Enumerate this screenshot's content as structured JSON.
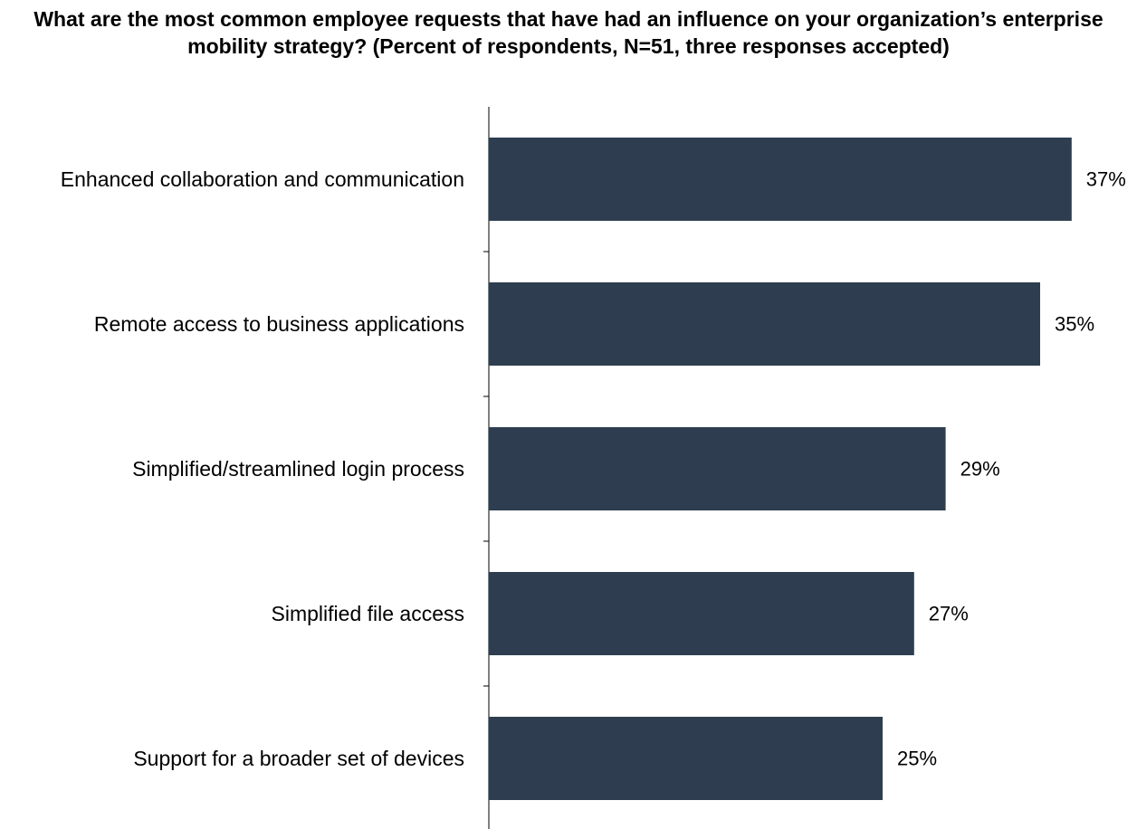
{
  "chart_data": {
    "type": "bar",
    "orientation": "horizontal",
    "title": "What are the most common employee requests that have had an influence on your organization’s enterprise mobility strategy? (Percent of respondents, N=51, three responses accepted)",
    "categories": [
      "Enhanced collaboration and communication",
      "Remote access to business applications",
      "Simplified/streamlined login process",
      "Simplified  file access",
      "Support for a broader set of devices"
    ],
    "values": [
      37,
      35,
      29,
      27,
      25
    ],
    "value_labels": [
      "37%",
      "35%",
      "29%",
      "27%",
      "25%"
    ],
    "unit": "%",
    "xlim": [
      0,
      40
    ],
    "bar_color": "#2e3e50",
    "grid": false,
    "legend": "none",
    "xlabel": "",
    "ylabel": ""
  }
}
